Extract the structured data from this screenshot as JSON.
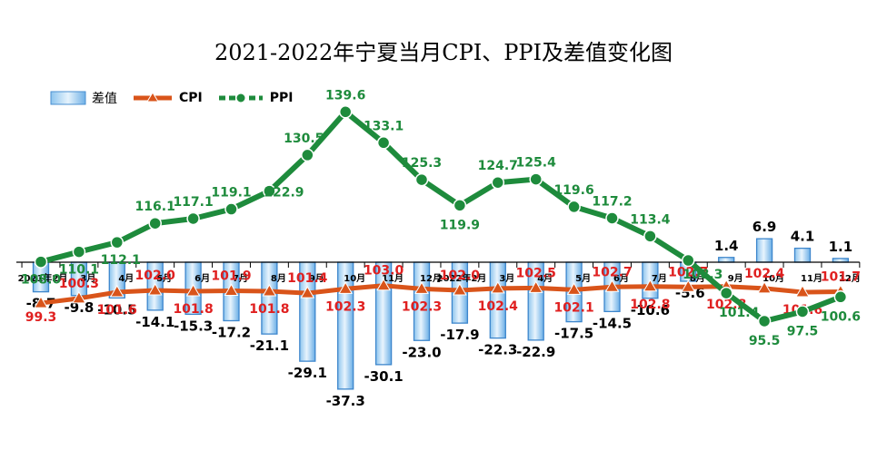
{
  "chart_data": {
    "type": "bar",
    "title": "2021-2022年宁夏当月CPI、PPI及差值变化图",
    "categories": [
      "2021年2月",
      "3月",
      "4月",
      "5月",
      "6月",
      "7月",
      "8月",
      "9月",
      "10月",
      "11月",
      "12月",
      "2022年2月",
      "3月",
      "4月",
      "5月",
      "6月",
      "7月",
      "8月",
      "9月",
      "10月",
      "11月",
      "12月"
    ],
    "series": [
      {
        "name": "差值",
        "type": "bar",
        "color": "#5aa0dc",
        "values": [
          -8.7,
          -9.8,
          -10.5,
          -14.1,
          -15.3,
          -17.2,
          -21.1,
          -29.1,
          -37.3,
          -30.1,
          -23.0,
          -17.9,
          -22.3,
          -22.9,
          -17.5,
          -14.5,
          -10.6,
          -5.6,
          1.4,
          6.9,
          4.1,
          1.1
        ],
        "labels": [
          "-8.7",
          "-9.8",
          "-10.5",
          "-14.1",
          "-15.3",
          "-17.2",
          "-21.1",
          "-29.1",
          "-37.3",
          "-30.1",
          "-23.0",
          "-17.9",
          "-22.3",
          "-22.9",
          "-17.5",
          "-14.5",
          "-10.6",
          "-5.6",
          "1.4",
          "6.9",
          "4.1",
          "1.1"
        ]
      },
      {
        "name": "CPI",
        "type": "line",
        "color": "#d9541a",
        "values": [
          99.3,
          100.3,
          101.6,
          102.0,
          101.8,
          101.9,
          101.8,
          101.4,
          102.3,
          103.0,
          102.3,
          102.0,
          102.4,
          102.5,
          102.1,
          102.7,
          102.8,
          102.7,
          102.8,
          102.4,
          101.6,
          101.7
        ],
        "labels": [
          "99.3",
          "100.3",
          "101.6",
          "102.0",
          "101.8",
          "101.9",
          "101.8",
          "101.4",
          "102.3",
          "103.0",
          "102.3",
          "102.0",
          "102.4",
          "102.5",
          "102.1",
          "102.7",
          "102.8",
          "102.7",
          "102.8",
          "102.4",
          "101.6",
          "101.7"
        ]
      },
      {
        "name": "PPI",
        "type": "line",
        "color": "#1e8b3c",
        "values": [
          108.0,
          110.1,
          112.1,
          116.1,
          117.1,
          119.1,
          122.9,
          130.5,
          139.6,
          133.1,
          125.3,
          119.9,
          124.7,
          125.4,
          119.6,
          117.2,
          113.4,
          108.3,
          101.4,
          95.5,
          97.5,
          100.6
        ],
        "labels": [
          "108.0",
          "110.1",
          "112.1",
          "116.1",
          "117.1",
          "119.1",
          "122.9",
          "130.5",
          "139.6",
          "133.1",
          "125.3",
          "119.9",
          "124.7",
          "125.4",
          "119.6",
          "117.2",
          "113.4",
          "108.3",
          "101.4",
          "95.5",
          "97.5",
          "100.6"
        ]
      }
    ],
    "legend_position": "top-left",
    "grid": false
  }
}
